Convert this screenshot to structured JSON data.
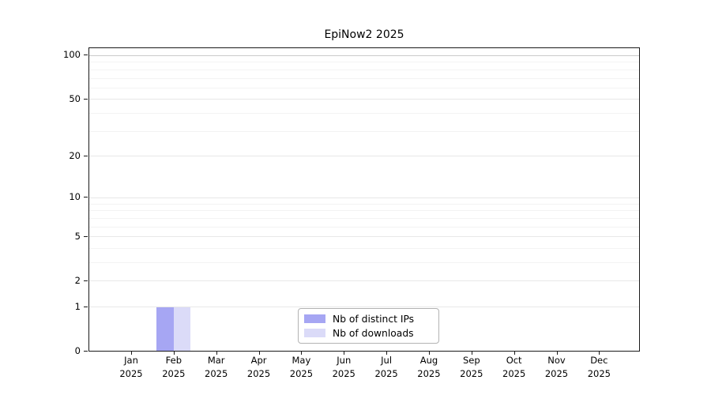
{
  "title": "EpiNow2 2025",
  "colors": {
    "distinct_ips": "#a6a6f3",
    "downloads": "#dbdbf8",
    "grid_top": "#cbcbcb",
    "grid_major": "#e8e8e8",
    "grid_minor": "#f3f3f3",
    "spine": "#1a1a1a"
  },
  "legend": {
    "items": [
      {
        "label": "Nb of distinct IPs",
        "color_key": "distinct_ips"
      },
      {
        "label": "Nb of downloads",
        "color_key": "downloads"
      }
    ]
  },
  "chart_data": {
    "type": "bar",
    "title": "EpiNow2 2025",
    "categories": [
      "Jan 2025",
      "Feb 2025",
      "Mar 2025",
      "Apr 2025",
      "May 2025",
      "Jun 2025",
      "Jul 2025",
      "Aug 2025",
      "Sep 2025",
      "Oct 2025",
      "Nov 2025",
      "Dec 2025"
    ],
    "x_tick_line1": [
      "Jan",
      "Feb",
      "Mar",
      "Apr",
      "May",
      "Jun",
      "Jul",
      "Aug",
      "Sep",
      "Oct",
      "Nov",
      "Dec"
    ],
    "x_tick_line2": [
      "2025",
      "2025",
      "2025",
      "2025",
      "2025",
      "2025",
      "2025",
      "2025",
      "2025",
      "2025",
      "2025",
      "2025"
    ],
    "series": [
      {
        "name": "Nb of distinct IPs",
        "color_key": "distinct_ips",
        "values": [
          0,
          1,
          0,
          0,
          0,
          0,
          0,
          0,
          0,
          0,
          0,
          0
        ]
      },
      {
        "name": "Nb of downloads",
        "color_key": "downloads",
        "values": [
          0,
          1,
          0,
          0,
          0,
          0,
          0,
          0,
          0,
          0,
          0,
          0
        ]
      }
    ],
    "yscale": "log1p",
    "ylim": [
      0,
      113
    ],
    "yticks_major": [
      0,
      1,
      2,
      5,
      10,
      20,
      50,
      100
    ],
    "yticks_minor": [
      3,
      4,
      6,
      7,
      8,
      9,
      30,
      40,
      60,
      70,
      80,
      90
    ],
    "grid": "horizontal",
    "legend_position": "lower center",
    "xlabel": "",
    "ylabel": ""
  }
}
